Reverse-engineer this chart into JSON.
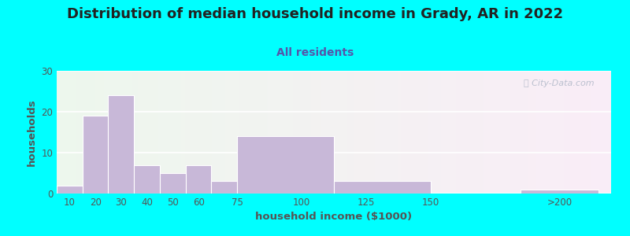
{
  "title": "Distribution of median household income in Grady, AR in 2022",
  "subtitle": "All residents",
  "xlabel": "household income ($1000)",
  "ylabel": "households",
  "title_fontsize": 13,
  "subtitle_fontsize": 10,
  "label_fontsize": 9.5,
  "tick_fontsize": 8.5,
  "background_color": "#00FFFF",
  "bar_color": "#c8b8d8",
  "bar_edge_color": "#ffffff",
  "grid_color": "#ffffff",
  "watermark": "ⓘ City-Data.com",
  "bar_lefts": [
    5,
    15,
    25,
    35,
    45,
    55,
    65,
    75,
    112.5,
    150,
    185
  ],
  "bar_widths": [
    10,
    10,
    10,
    10,
    10,
    10,
    10,
    37.5,
    37.5,
    25,
    30
  ],
  "values": [
    2,
    19,
    24,
    7,
    5,
    7,
    3,
    14,
    3,
    0,
    1
  ],
  "xlim": [
    5,
    220
  ],
  "ylim": [
    0,
    30
  ],
  "yticks": [
    0,
    10,
    20,
    30
  ],
  "xtick_positions": [
    10,
    20,
    30,
    40,
    50,
    60,
    75,
    100,
    125,
    150,
    200
  ],
  "xtick_labels": [
    "10",
    "20",
    "30",
    "40",
    "50",
    "60",
    "75",
    "100",
    "125",
    "150",
    ">200"
  ],
  "title_color": "#222222",
  "subtitle_color": "#5555aa",
  "axis_color": "#555555",
  "tick_color": "#555555",
  "green_end": 65,
  "pink_start": 65
}
